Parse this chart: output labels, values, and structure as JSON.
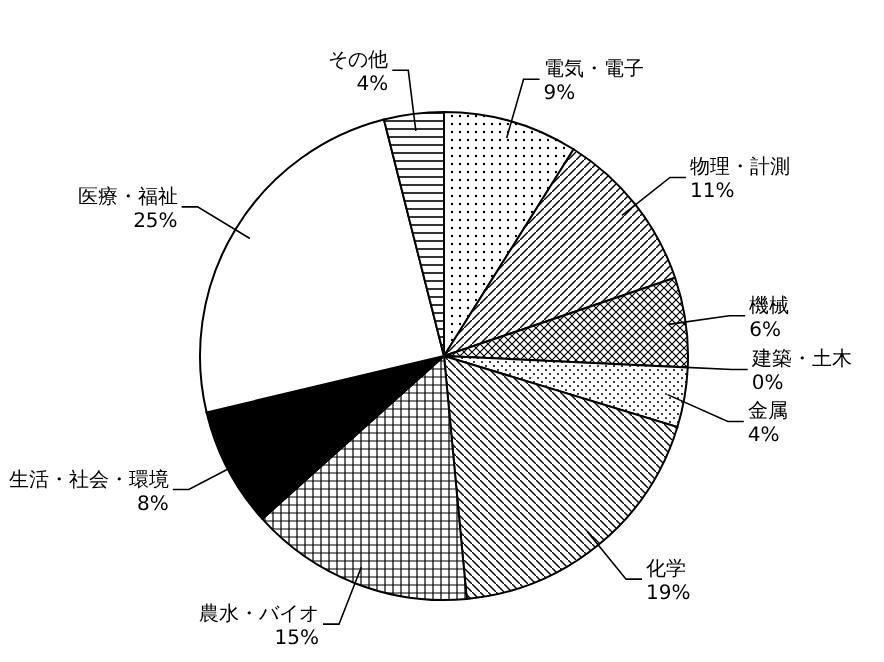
{
  "chart_data": {
    "type": "pie",
    "categories": [
      "電気・電子",
      "物理・計測",
      "機械",
      "建築・土木",
      "金属",
      "化学",
      "農水・バイオ",
      "生活・社会・環境",
      "医療・福祉",
      "その他"
    ],
    "values": [
      9,
      11,
      6,
      0,
      4,
      19,
      15,
      8,
      25,
      4
    ],
    "value_labels": [
      "9%",
      "11%",
      "6%",
      "0%",
      "4%",
      "19%",
      "15%",
      "8%",
      "25%",
      "4%"
    ]
  }
}
